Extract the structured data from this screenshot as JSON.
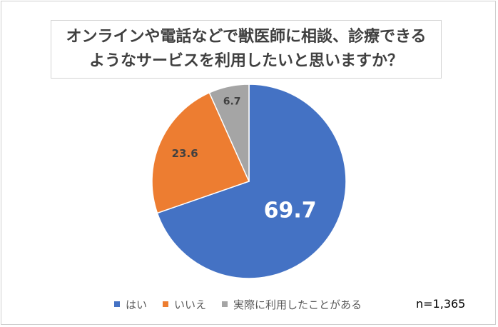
{
  "chart_data": {
    "type": "pie",
    "title_lines": [
      "オンラインや電話などで獣医師に相談、診療できる",
      "ようなサービスを利用したいと思いますか？"
    ],
    "categories": [
      "はい",
      "いいえ",
      "実際に利用したことがある"
    ],
    "values": [
      69.7,
      23.6,
      6.7
    ],
    "value_labels": [
      "69.7",
      "23.6",
      "6.7"
    ],
    "colors": [
      "#4472c4",
      "#ed7d31",
      "#a5a5a5"
    ],
    "start": "12 o'clock, clockwise",
    "legend_position": "bottom",
    "annotation": "n=1,365"
  }
}
